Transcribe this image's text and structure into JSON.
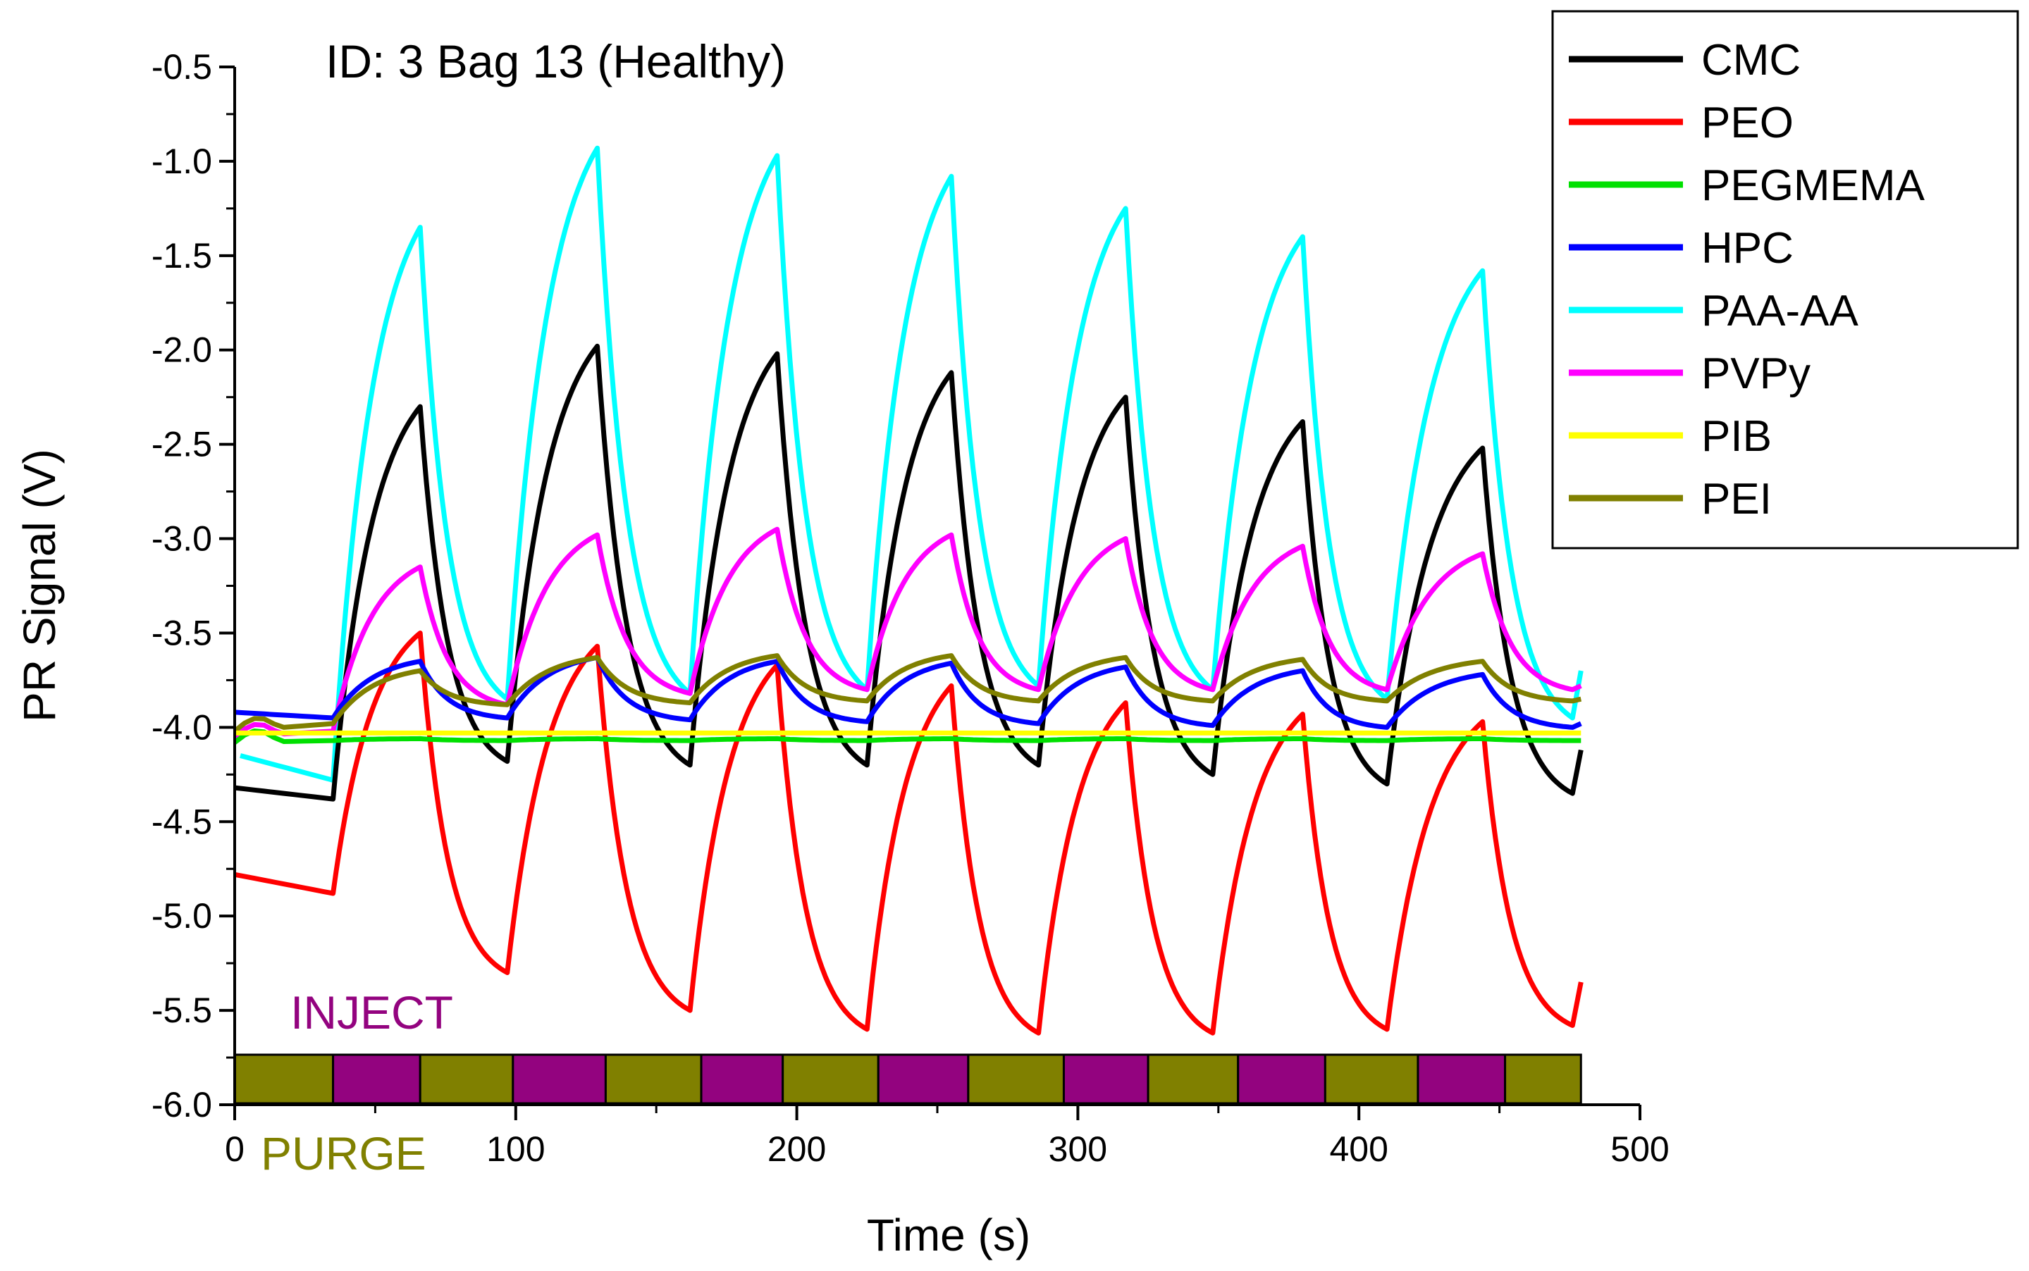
{
  "chart_data": {
    "type": "line",
    "title": "ID: 3  Bag 13  (Healthy)",
    "xlabel": "Time (s)",
    "ylabel": "PR Signal (V)",
    "xlim": [
      0,
      500
    ],
    "ylim": [
      -6.0,
      -0.5
    ],
    "xticks": [
      0,
      100,
      200,
      300,
      400,
      500
    ],
    "xtick_labels": [
      "0",
      "100",
      "200",
      "300",
      "400",
      "500"
    ],
    "yticks": [
      -6.0,
      -5.5,
      -5.0,
      -4.5,
      -4.0,
      -3.5,
      -3.0,
      -2.5,
      -2.0,
      -1.5,
      -1.0,
      -0.5
    ],
    "ytick_labels": [
      "-6.0",
      "-5.5",
      "-5.0",
      "-4.5",
      "-4.0",
      "-3.5",
      "-3.0",
      "-2.5",
      "-2.0",
      "-1.5",
      "-1.0",
      "-0.5"
    ],
    "legend_position": "top-right",
    "cycle_times": [
      35,
      97,
      162,
      225,
      286,
      348,
      410,
      476
    ],
    "peak_times": [
      66,
      129,
      193,
      255,
      317,
      380,
      444
    ],
    "series": [
      {
        "name": "CMC",
        "color": "#000000",
        "x_start": 0,
        "start": -4.32,
        "baseline_pre": -4.38,
        "peaks": [
          -2.3,
          -1.98,
          -2.02,
          -2.12,
          -2.25,
          -2.38,
          -2.52
        ],
        "troughs": [
          -4.18,
          -4.2,
          -4.2,
          -4.2,
          -4.25,
          -4.3,
          -4.35
        ],
        "end": -4.12
      },
      {
        "name": "PEO",
        "color": "#ff0000",
        "x_start": 0,
        "start": -4.78,
        "baseline_pre": -4.88,
        "peaks": [
          -3.5,
          -3.57,
          -3.67,
          -3.78,
          -3.87,
          -3.93,
          -3.97
        ],
        "troughs": [
          -5.3,
          -5.5,
          -5.6,
          -5.62,
          -5.62,
          -5.6,
          -5.58
        ],
        "end": -5.35
      },
      {
        "name": "PEGMEMA",
        "color": "#00e000",
        "x_start": 0,
        "start": -4.08,
        "baseline_pre": -4.07,
        "peaks": [
          -4.06,
          -4.06,
          -4.06,
          -4.06,
          -4.06,
          -4.06,
          -4.06
        ],
        "troughs": [
          -4.07,
          -4.07,
          -4.07,
          -4.07,
          -4.07,
          -4.07,
          -4.07
        ],
        "end": -4.07
      },
      {
        "name": "HPC",
        "color": "#0000ff",
        "x_start": 0,
        "start": -3.92,
        "baseline_pre": -3.95,
        "peaks": [
          -3.65,
          -3.63,
          -3.65,
          -3.66,
          -3.68,
          -3.7,
          -3.72
        ],
        "troughs": [
          -3.95,
          -3.96,
          -3.97,
          -3.98,
          -3.99,
          -4.0,
          -4.0
        ],
        "end": -3.98
      },
      {
        "name": "PAA-AA",
        "color": "#00ffff",
        "x_start": 2,
        "start": -4.15,
        "baseline_pre": -4.28,
        "peaks": [
          -1.35,
          -0.93,
          -0.97,
          -1.08,
          -1.25,
          -1.4,
          -1.58
        ],
        "troughs": [
          -3.85,
          -3.82,
          -3.8,
          -3.78,
          -3.8,
          -3.85,
          -3.95
        ],
        "end": -3.7
      },
      {
        "name": "PVPy",
        "color": "#ff00ff",
        "x_start": 0,
        "start": -4.05,
        "baseline_pre": -4.02,
        "peaks": [
          -3.15,
          -2.98,
          -2.95,
          -2.98,
          -3.0,
          -3.04,
          -3.08
        ],
        "troughs": [
          -3.88,
          -3.82,
          -3.8,
          -3.8,
          -3.8,
          -3.8,
          -3.8
        ],
        "end": -3.78
      },
      {
        "name": "PIB",
        "color": "#ffff00",
        "x_start": 0,
        "start": -4.03,
        "baseline_pre": -4.03,
        "peaks": [
          -4.03,
          -4.03,
          -4.03,
          -4.03,
          -4.03,
          -4.03,
          -4.03
        ],
        "troughs": [
          -4.03,
          -4.03,
          -4.03,
          -4.03,
          -4.03,
          -4.03,
          -4.03
        ],
        "end": -4.03
      },
      {
        "name": "PEI",
        "color": "#808000",
        "x_start": 0,
        "start": -4.02,
        "baseline_pre": -3.98,
        "peaks": [
          -3.7,
          -3.63,
          -3.62,
          -3.62,
          -3.63,
          -3.64,
          -3.65
        ],
        "troughs": [
          -3.88,
          -3.87,
          -3.86,
          -3.86,
          -3.86,
          -3.86,
          -3.86
        ],
        "end": -3.85
      }
    ],
    "phase_bar": {
      "inject_label": "INJECT",
      "purge_label": "PURGE",
      "inject_color": "#93037f",
      "purge_color": "#808000",
      "segments": [
        {
          "phase": "purge",
          "start": 0,
          "end": 35
        },
        {
          "phase": "inject",
          "start": 35,
          "end": 66
        },
        {
          "phase": "purge",
          "start": 66,
          "end": 99
        },
        {
          "phase": "inject",
          "start": 99,
          "end": 132
        },
        {
          "phase": "purge",
          "start": 132,
          "end": 166
        },
        {
          "phase": "inject",
          "start": 166,
          "end": 195
        },
        {
          "phase": "purge",
          "start": 195,
          "end": 229
        },
        {
          "phase": "inject",
          "start": 229,
          "end": 261
        },
        {
          "phase": "purge",
          "start": 261,
          "end": 295
        },
        {
          "phase": "inject",
          "start": 295,
          "end": 325
        },
        {
          "phase": "purge",
          "start": 325,
          "end": 357
        },
        {
          "phase": "inject",
          "start": 357,
          "end": 388
        },
        {
          "phase": "purge",
          "start": 388,
          "end": 421
        },
        {
          "phase": "inject",
          "start": 421,
          "end": 452
        },
        {
          "phase": "purge",
          "start": 452,
          "end": 479
        }
      ]
    }
  }
}
